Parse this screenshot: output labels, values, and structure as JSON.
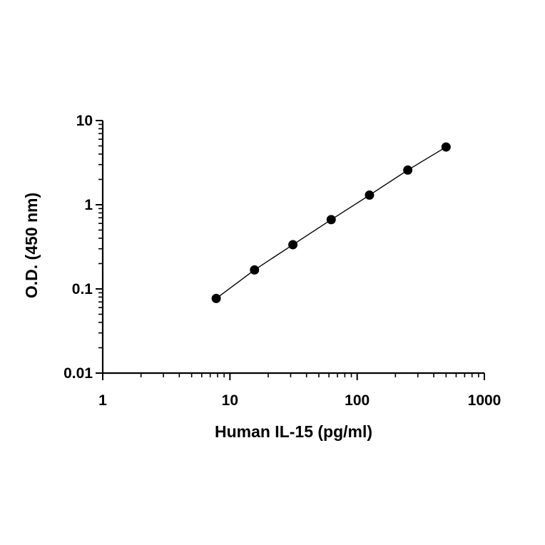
{
  "chart_data": {
    "type": "scatter",
    "xlabel": "Human IL-15 (pg/ml)",
    "ylabel": "O.D. (450 nm)",
    "xscale": "log",
    "yscale": "log",
    "xlim": [
      1,
      1000
    ],
    "ylim": [
      0.01,
      10
    ],
    "x_tick_labels": [
      "1",
      "10",
      "100",
      "1000"
    ],
    "y_tick_labels": [
      "0.01",
      "0.1",
      "1",
      "10"
    ],
    "x_ticks": [
      1,
      10,
      100,
      1000
    ],
    "y_ticks": [
      0.01,
      0.1,
      1,
      10
    ],
    "grid": false,
    "fit_line": true,
    "series": [
      {
        "x": [
          7.8,
          15.6,
          31.25,
          62.5,
          125,
          250,
          500
        ],
        "y": [
          0.077,
          0.168,
          0.335,
          0.665,
          1.3,
          2.58,
          4.85
        ]
      }
    ]
  }
}
